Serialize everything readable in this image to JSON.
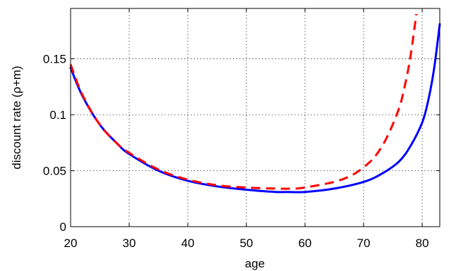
{
  "chart_data": {
    "type": "line",
    "xlabel": "age",
    "ylabel": "discount rate (ρ+m)",
    "xlim": [
      20,
      83
    ],
    "ylim": [
      0,
      0.195
    ],
    "grid": true,
    "xticks": [
      20,
      30,
      40,
      50,
      60,
      70,
      80
    ],
    "xtick_labels": [
      "20",
      "30",
      "40",
      "50",
      "60",
      "70",
      "80"
    ],
    "yticks": [
      0,
      0.05,
      0.1,
      0.15
    ],
    "ytick_labels": [
      "0",
      "0.05",
      "0.1",
      "0.15"
    ],
    "series": [
      {
        "style": "solid",
        "color": "#0000ff",
        "x": [
          20,
          22,
          25,
          28,
          30,
          35,
          40,
          45,
          50,
          55,
          57,
          60,
          65,
          70,
          73,
          76,
          78,
          80,
          81,
          82,
          83
        ],
        "y": [
          0.142,
          0.117,
          0.091,
          0.074,
          0.065,
          0.05,
          0.041,
          0.036,
          0.033,
          0.031,
          0.031,
          0.031,
          0.034,
          0.04,
          0.047,
          0.058,
          0.072,
          0.093,
          0.112,
          0.14,
          0.181
        ]
      },
      {
        "style": "dashed",
        "color": "#ff0000",
        "x": [
          20,
          22,
          25,
          28,
          30,
          35,
          40,
          45,
          50,
          55,
          58,
          60,
          65,
          68,
          70,
          72,
          74,
          76,
          77,
          78,
          79
        ],
        "y": [
          0.145,
          0.118,
          0.091,
          0.074,
          0.066,
          0.051,
          0.042,
          0.037,
          0.035,
          0.034,
          0.034,
          0.035,
          0.04,
          0.046,
          0.053,
          0.063,
          0.08,
          0.105,
          0.125,
          0.152,
          0.19
        ]
      }
    ]
  }
}
